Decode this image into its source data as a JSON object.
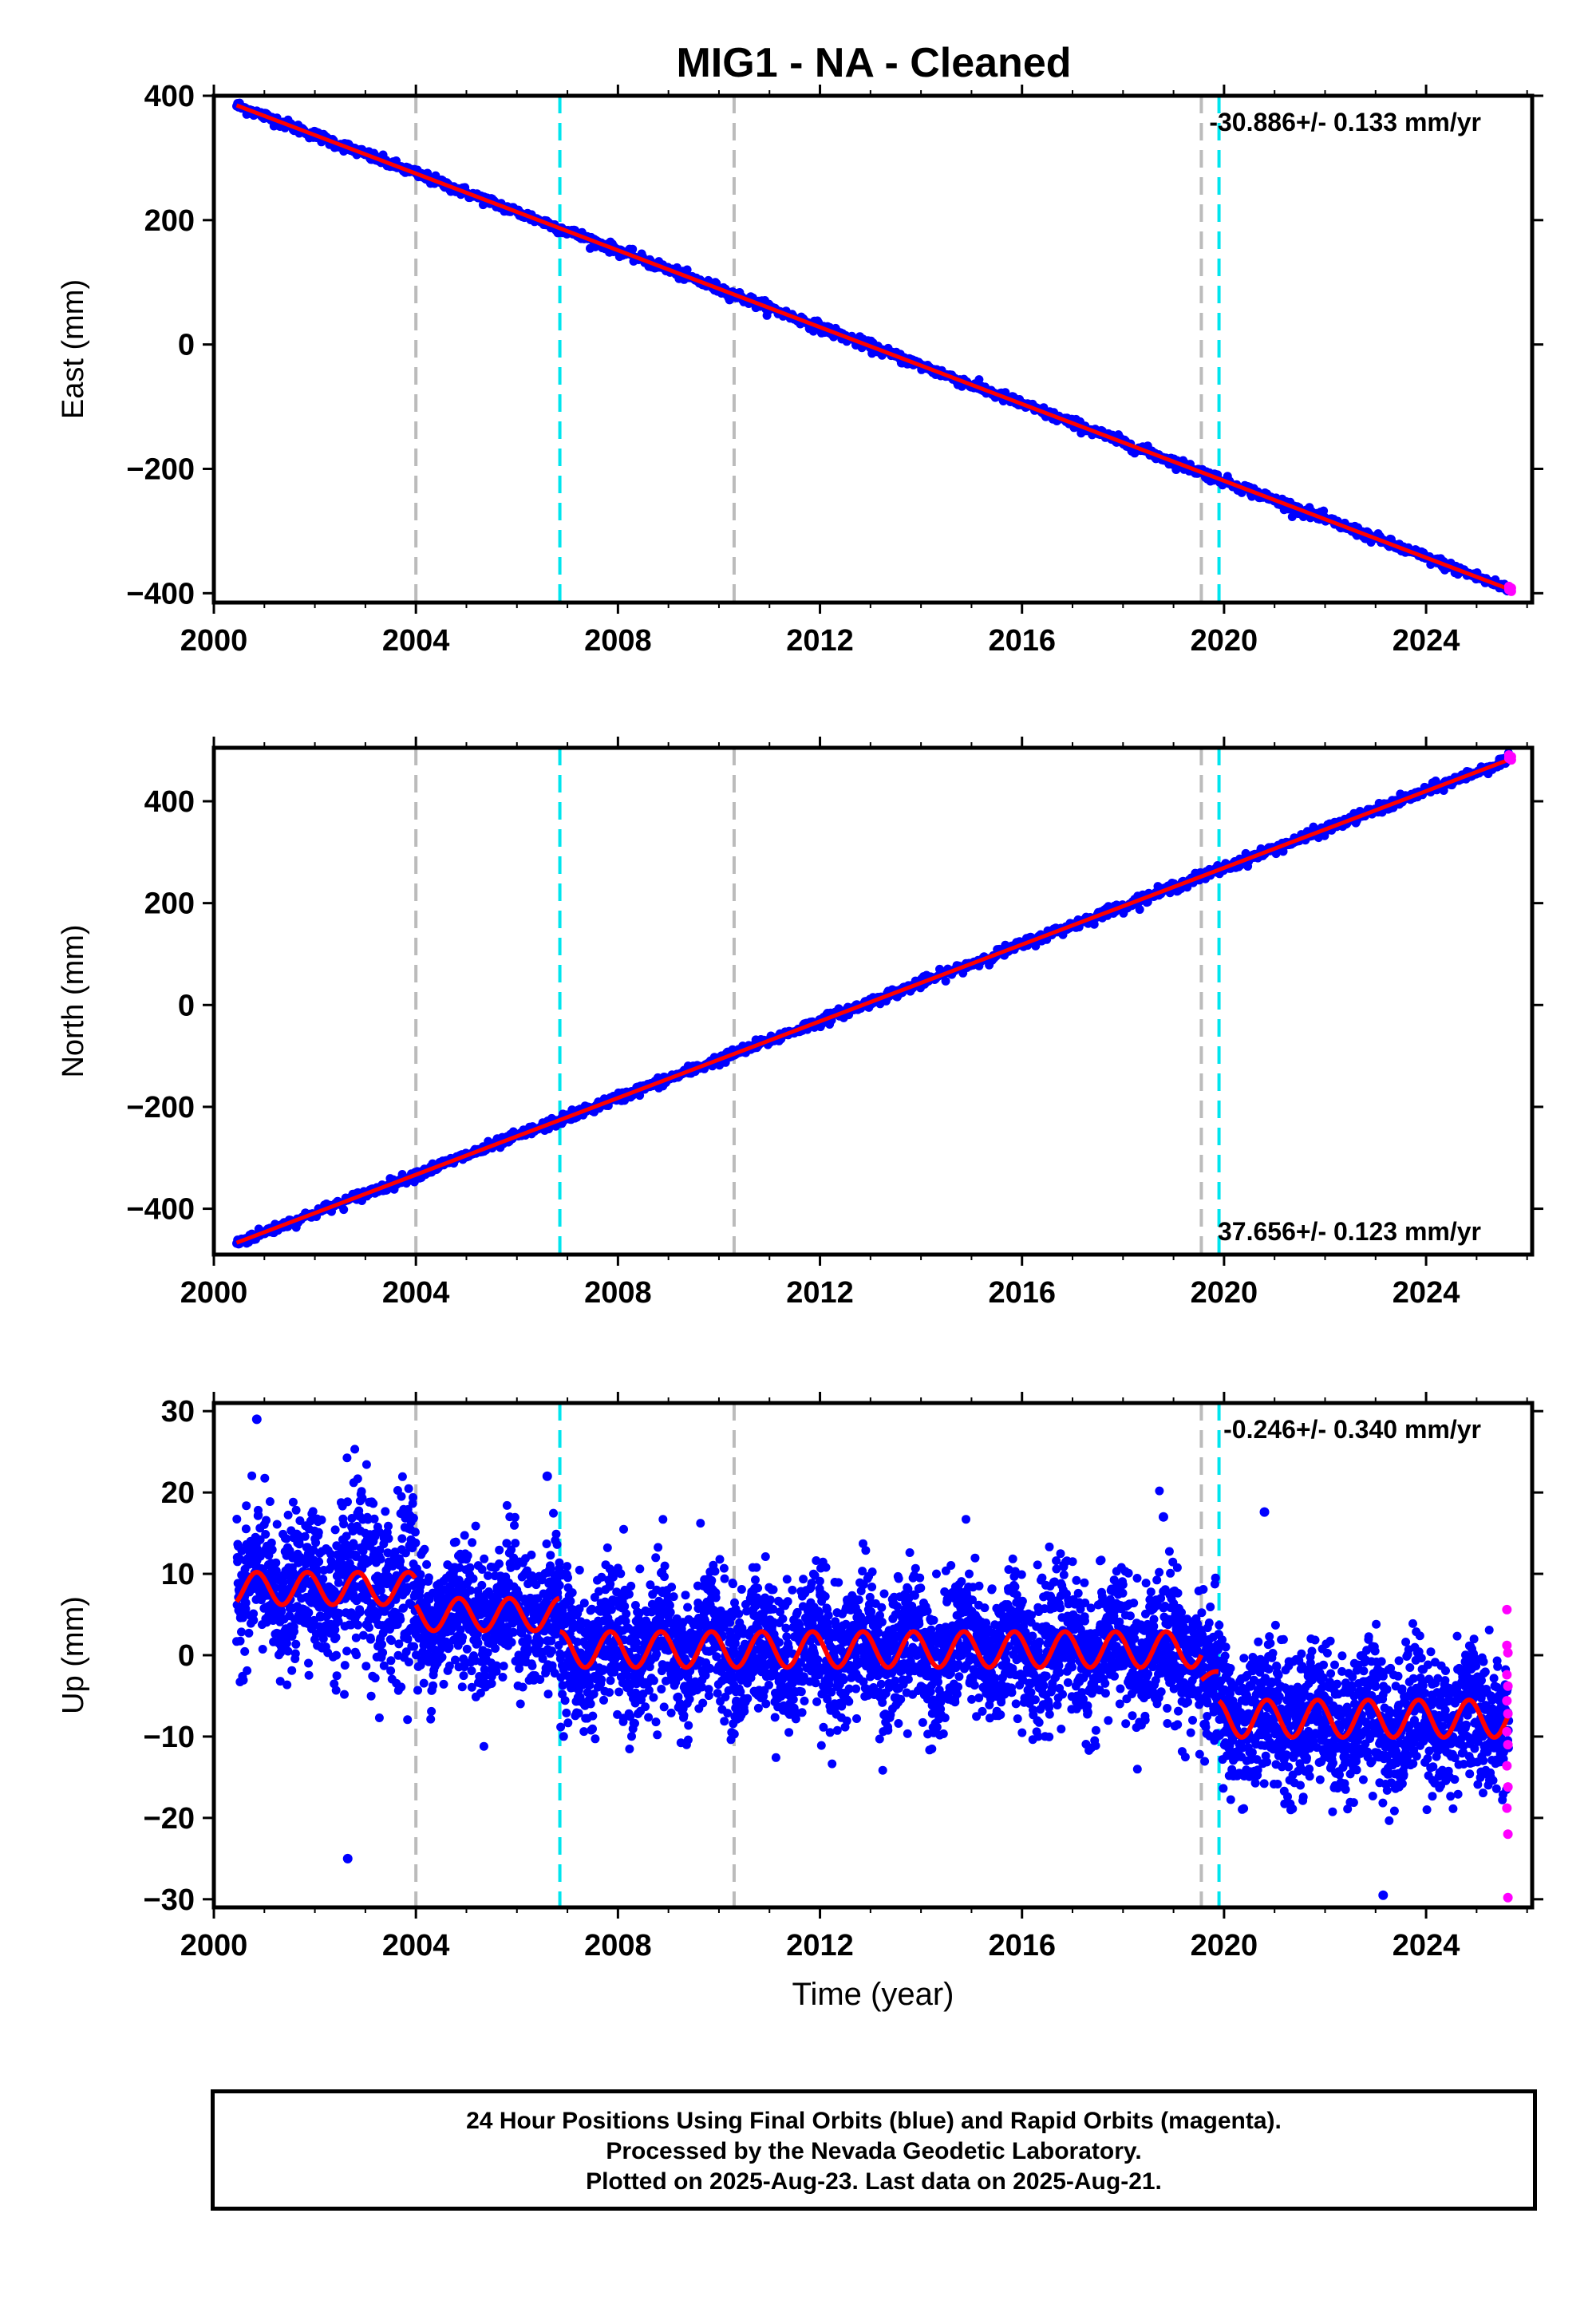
{
  "title": "MIG1  - NA - Cleaned",
  "colors": {
    "final_orbits": "#0000ff",
    "rapid_orbits": "#ff00ff",
    "model": "#ff0000",
    "event_gray": "#bbbbbb",
    "event_cyan": "#00e5ee"
  },
  "chart_data": [
    {
      "type": "scatter",
      "component": "east",
      "ylabel": "East (mm)",
      "xlabel": "",
      "rate_text": "-30.886+/- 0.133 mm/yr",
      "rate_position": "top-right",
      "xlim": [
        2000.0,
        2026.1
      ],
      "ylim": [
        -415,
        400
      ],
      "xticks": [
        "2000",
        "2004",
        "2008",
        "2012",
        "2016",
        "2020",
        "2024"
      ],
      "yticks": [
        "400",
        "200",
        "0",
        "−200",
        "−400"
      ],
      "ytick_values": [
        400,
        200,
        0,
        -200,
        -400
      ],
      "trend": {
        "t0": 2000.5,
        "y0": 383,
        "rate_mm_per_yr": -30.886,
        "start": 2000.45,
        "end": 2025.64
      },
      "scatter_mm": 4,
      "rapid_end": {
        "x": 2025.64,
        "y": -393
      },
      "event_lines": [
        {
          "x": 2004.0,
          "color": "gray"
        },
        {
          "x": 2006.85,
          "color": "cyan"
        },
        {
          "x": 2010.3,
          "color": "gray"
        },
        {
          "x": 2019.55,
          "color": "gray"
        },
        {
          "x": 2019.9,
          "color": "cyan"
        }
      ]
    },
    {
      "type": "scatter",
      "component": "north",
      "ylabel": "North (mm)",
      "xlabel": "",
      "rate_text": "37.656+/- 0.123 mm/yr",
      "rate_position": "bottom-right",
      "xlim": [
        2000.0,
        2026.1
      ],
      "ylim": [
        -490,
        505
      ],
      "xticks": [
        "2000",
        "2004",
        "2008",
        "2012",
        "2016",
        "2020",
        "2024"
      ],
      "yticks": [
        "400",
        "200",
        "0",
        "−200",
        "−400"
      ],
      "ytick_values": [
        400,
        200,
        0,
        -200,
        -400
      ],
      "trend": {
        "t0": 2000.5,
        "y0": -465,
        "rate_mm_per_yr": 37.656,
        "start": 2000.45,
        "end": 2025.64
      },
      "scatter_mm": 5,
      "rapid_end": {
        "x": 2025.64,
        "y": 486
      },
      "event_lines": [
        {
          "x": 2004.0,
          "color": "gray"
        },
        {
          "x": 2006.85,
          "color": "cyan"
        },
        {
          "x": 2010.3,
          "color": "gray"
        },
        {
          "x": 2019.55,
          "color": "gray"
        },
        {
          "x": 2019.9,
          "color": "cyan"
        }
      ]
    },
    {
      "type": "scatter",
      "component": "up",
      "ylabel": "Up (mm)",
      "xlabel": "Time (year)",
      "rate_text": "-0.246+/- 0.340 mm/yr",
      "rate_position": "top-right",
      "xlim": [
        2000.0,
        2026.1
      ],
      "ylim": [
        -31,
        31
      ],
      "xticks": [
        "2000",
        "2004",
        "2008",
        "2012",
        "2016",
        "2020",
        "2024"
      ],
      "yticks": [
        "30",
        "20",
        "10",
        "0",
        "−10",
        "−20",
        "−30"
      ],
      "ytick_values": [
        30,
        20,
        10,
        0,
        -10,
        -20,
        -30
      ],
      "model_segments": [
        {
          "start": 2000.45,
          "end": 2004.0,
          "level": 8.2,
          "amplitude": 2.0
        },
        {
          "start": 2004.0,
          "end": 2006.85,
          "level": 5.0,
          "amplitude": 2.0
        },
        {
          "start": 2006.85,
          "end": 2019.55,
          "level": 0.7,
          "amplitude": 2.2
        },
        {
          "start": 2019.55,
          "end": 2019.9,
          "level": -2.8,
          "amplitude": 0.8
        },
        {
          "start": 2019.9,
          "end": 2025.64,
          "level": -7.8,
          "amplitude": 2.3
        }
      ],
      "scatter_sigma_mm": 4.2,
      "outliers": [
        {
          "x": 2000.85,
          "y": 29
        },
        {
          "x": 2002.65,
          "y": -25
        },
        {
          "x": 2023.15,
          "y": -29.5
        },
        {
          "x": 2020.8,
          "y": 17.6
        },
        {
          "x": 2018.8,
          "y": 17
        },
        {
          "x": 2006.6,
          "y": 22
        }
      ],
      "rapid_points": [
        {
          "x": 2025.6,
          "y": 5.6
        },
        {
          "x": 2025.6,
          "y": 1.2
        },
        {
          "x": 2025.62,
          "y": 0.3
        },
        {
          "x": 2025.6,
          "y": -2.4
        },
        {
          "x": 2025.62,
          "y": -3.8
        },
        {
          "x": 2025.6,
          "y": -5.6
        },
        {
          "x": 2025.62,
          "y": -7.2
        },
        {
          "x": 2025.6,
          "y": -9.4
        },
        {
          "x": 2025.62,
          "y": -11
        },
        {
          "x": 2025.6,
          "y": -13.6
        },
        {
          "x": 2025.62,
          "y": -16.2
        },
        {
          "x": 2025.6,
          "y": -18.8
        },
        {
          "x": 2025.62,
          "y": -22
        },
        {
          "x": 2025.62,
          "y": -29.8
        }
      ],
      "event_lines": [
        {
          "x": 2004.0,
          "color": "gray"
        },
        {
          "x": 2006.85,
          "color": "cyan"
        },
        {
          "x": 2010.3,
          "color": "gray"
        },
        {
          "x": 2019.55,
          "color": "gray"
        },
        {
          "x": 2019.9,
          "color": "cyan"
        }
      ]
    }
  ],
  "footer": {
    "line1": "24 Hour Positions Using Final Orbits (blue) and Rapid Orbits (magenta).",
    "line2": "Processed by the Nevada Geodetic Laboratory.",
    "line3": "Plotted on 2025-Aug-23. Last data on 2025-Aug-21."
  }
}
